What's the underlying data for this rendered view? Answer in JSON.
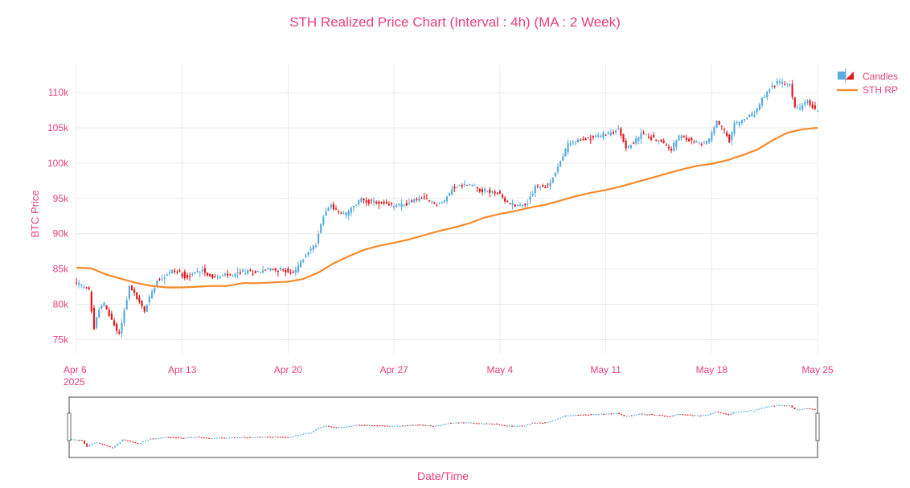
{
  "chart_data": {
    "type": "candlestick",
    "title": "STH Realized Price Chart (Interval : 4h) (MA : 2 Week)",
    "xlabel": "Date/Time",
    "ylabel": "BTC Price",
    "x_range": [
      "2025-04-06",
      "2025-05-25"
    ],
    "ylim": [
      73000,
      114000
    ],
    "y_ticks": [
      {
        "value": 75000,
        "label": "75k"
      },
      {
        "value": 80000,
        "label": "80k"
      },
      {
        "value": 85000,
        "label": "85k"
      },
      {
        "value": 90000,
        "label": "90k"
      },
      {
        "value": 95000,
        "label": "95k"
      },
      {
        "value": 100000,
        "label": "100k"
      },
      {
        "value": 105000,
        "label": "105k"
      },
      {
        "value": 110000,
        "label": "110k"
      }
    ],
    "x_ticks": [
      {
        "date": "2025-04-06",
        "label": "Apr 6",
        "sublabel": "2025"
      },
      {
        "date": "2025-04-13",
        "label": "Apr 13"
      },
      {
        "date": "2025-04-20",
        "label": "Apr 20"
      },
      {
        "date": "2025-04-27",
        "label": "Apr 27"
      },
      {
        "date": "2025-05-04",
        "label": "May 4"
      },
      {
        "date": "2025-05-11",
        "label": "May 11"
      },
      {
        "date": "2025-05-18",
        "label": "May 18"
      },
      {
        "date": "2025-05-25",
        "label": "May 25"
      }
    ],
    "candle_interval_hours": 4,
    "price_path": [
      [
        "2025-04-06",
        83200
      ],
      [
        "2025-04-07",
        82000
      ],
      [
        "2025-04-07 08:00",
        76500
      ],
      [
        "2025-04-07 16:00",
        79500
      ],
      [
        "2025-04-08",
        80000
      ],
      [
        "2025-04-08 16:00",
        77000
      ],
      [
        "2025-04-09",
        75800
      ],
      [
        "2025-04-09 16:00",
        82500
      ],
      [
        "2025-04-10",
        81500
      ],
      [
        "2025-04-10 16:00",
        79000
      ],
      [
        "2025-04-11",
        81000
      ],
      [
        "2025-04-11 12:00",
        83500
      ],
      [
        "2025-04-12",
        84000
      ],
      [
        "2025-04-12 12:00",
        84800
      ],
      [
        "2025-04-13",
        84500
      ],
      [
        "2025-04-13 12:00",
        83800
      ],
      [
        "2025-04-14",
        84500
      ],
      [
        "2025-04-14 12:00",
        85000
      ],
      [
        "2025-04-15",
        84000
      ],
      [
        "2025-04-15 12:00",
        83700
      ],
      [
        "2025-04-16",
        84200
      ],
      [
        "2025-04-16 12:00",
        84000
      ],
      [
        "2025-04-17",
        84600
      ],
      [
        "2025-04-18",
        84600
      ],
      [
        "2025-04-19",
        85000
      ],
      [
        "2025-04-20",
        84800
      ],
      [
        "2025-04-20 12:00",
        84300
      ],
      [
        "2025-04-21",
        86000
      ],
      [
        "2025-04-21 12:00",
        87500
      ],
      [
        "2025-04-22",
        88500
      ],
      [
        "2025-04-22 08:00",
        91500
      ],
      [
        "2025-04-22 16:00",
        93500
      ],
      [
        "2025-04-23",
        94000
      ],
      [
        "2025-04-23 12:00",
        93000
      ],
      [
        "2025-04-24",
        92800
      ],
      [
        "2025-04-24 12:00",
        93800
      ],
      [
        "2025-04-25",
        95000
      ],
      [
        "2025-04-25 12:00",
        94500
      ],
      [
        "2025-04-26",
        94400
      ],
      [
        "2025-04-27",
        94000
      ],
      [
        "2025-04-28",
        94200
      ],
      [
        "2025-04-28 12:00",
        94800
      ],
      [
        "2025-04-29",
        95000
      ],
      [
        "2025-04-30",
        94200
      ],
      [
        "2025-04-30 12:00",
        94600
      ],
      [
        "2025-05-01",
        96500
      ],
      [
        "2025-05-02",
        97000
      ],
      [
        "2025-05-02 12:00",
        96800
      ],
      [
        "2025-05-03",
        96100
      ],
      [
        "2025-05-04",
        95800
      ],
      [
        "2025-05-04 12:00",
        94600
      ],
      [
        "2025-05-05",
        94200
      ],
      [
        "2025-05-05 12:00",
        94000
      ],
      [
        "2025-05-06",
        94400
      ],
      [
        "2025-05-06 12:00",
        96800
      ],
      [
        "2025-05-07",
        96500
      ],
      [
        "2025-05-07 12:00",
        97200
      ],
      [
        "2025-05-08",
        99500
      ],
      [
        "2025-05-08 08:00",
        101000
      ],
      [
        "2025-05-08 16:00",
        102800
      ],
      [
        "2025-05-09",
        103000
      ],
      [
        "2025-05-10",
        103500
      ],
      [
        "2025-05-11",
        104000
      ],
      [
        "2025-05-11 12:00",
        104300
      ],
      [
        "2025-05-12",
        104800
      ],
      [
        "2025-05-12 12:00",
        102200
      ],
      [
        "2025-05-13",
        102800
      ],
      [
        "2025-05-13 12:00",
        104200
      ],
      [
        "2025-05-14",
        103800
      ],
      [
        "2025-05-15",
        102800
      ],
      [
        "2025-05-15 12:00",
        102000
      ],
      [
        "2025-05-16",
        103800
      ],
      [
        "2025-05-17",
        103000
      ],
      [
        "2025-05-17 12:00",
        102800
      ],
      [
        "2025-05-18",
        103300
      ],
      [
        "2025-05-18 12:00",
        106000
      ],
      [
        "2025-05-19",
        104500
      ],
      [
        "2025-05-19 08:00",
        103000
      ],
      [
        "2025-05-19 16:00",
        105500
      ],
      [
        "2025-05-20",
        105800
      ],
      [
        "2025-05-20 12:00",
        106500
      ],
      [
        "2025-05-21",
        107000
      ],
      [
        "2025-05-21 12:00",
        109000
      ],
      [
        "2025-05-22",
        110500
      ],
      [
        "2025-05-22 12:00",
        111500
      ],
      [
        "2025-05-23",
        111200
      ],
      [
        "2025-05-23 08:00",
        111000
      ],
      [
        "2025-05-23 16:00",
        108000
      ],
      [
        "2025-05-24",
        107800
      ],
      [
        "2025-05-24 12:00",
        108800
      ],
      [
        "2025-05-25",
        107500
      ]
    ],
    "series": [
      {
        "name": "Candles",
        "type": "candlestick",
        "increasing_color": "#5aacde",
        "decreasing_color": "#e0191e"
      },
      {
        "name": "STH RP",
        "type": "line",
        "color": "#f58a2a",
        "points": [
          [
            "2025-04-06",
            85200
          ],
          [
            "2025-04-07",
            85100
          ],
          [
            "2025-04-08",
            84200
          ],
          [
            "2025-04-09",
            83600
          ],
          [
            "2025-04-10",
            83000
          ],
          [
            "2025-04-11",
            82600
          ],
          [
            "2025-04-12",
            82400
          ],
          [
            "2025-04-13",
            82400
          ],
          [
            "2025-04-14",
            82500
          ],
          [
            "2025-04-15",
            82600
          ],
          [
            "2025-04-16",
            82600
          ],
          [
            "2025-04-17",
            83000
          ],
          [
            "2025-04-18",
            83000
          ],
          [
            "2025-04-19",
            83100
          ],
          [
            "2025-04-20",
            83200
          ],
          [
            "2025-04-21",
            83600
          ],
          [
            "2025-04-22",
            84500
          ],
          [
            "2025-04-23",
            85800
          ],
          [
            "2025-04-24",
            86800
          ],
          [
            "2025-04-25",
            87700
          ],
          [
            "2025-04-26",
            88300
          ],
          [
            "2025-04-27",
            88700
          ],
          [
            "2025-04-28",
            89200
          ],
          [
            "2025-04-29",
            89800
          ],
          [
            "2025-04-30",
            90400
          ],
          [
            "2025-05-01",
            90900
          ],
          [
            "2025-05-02",
            91500
          ],
          [
            "2025-05-03",
            92300
          ],
          [
            "2025-05-04",
            92800
          ],
          [
            "2025-05-05",
            93200
          ],
          [
            "2025-05-06",
            93700
          ],
          [
            "2025-05-07",
            94100
          ],
          [
            "2025-05-08",
            94700
          ],
          [
            "2025-05-09",
            95300
          ],
          [
            "2025-05-10",
            95800
          ],
          [
            "2025-05-11",
            96200
          ],
          [
            "2025-05-12",
            96700
          ],
          [
            "2025-05-13",
            97300
          ],
          [
            "2025-05-14",
            97900
          ],
          [
            "2025-05-15",
            98500
          ],
          [
            "2025-05-16",
            99100
          ],
          [
            "2025-05-17",
            99600
          ],
          [
            "2025-05-18",
            99900
          ],
          [
            "2025-05-19",
            100400
          ],
          [
            "2025-05-20",
            101100
          ],
          [
            "2025-05-21",
            101900
          ],
          [
            "2025-05-22",
            103200
          ],
          [
            "2025-05-23",
            104300
          ],
          [
            "2025-05-24",
            104800
          ],
          [
            "2025-05-25",
            105000
          ]
        ]
      }
    ],
    "legend_position": "top-right",
    "grid": true,
    "range_slider": true,
    "colors": {
      "text": "#e8407a",
      "grid": "#ebebeb"
    }
  }
}
